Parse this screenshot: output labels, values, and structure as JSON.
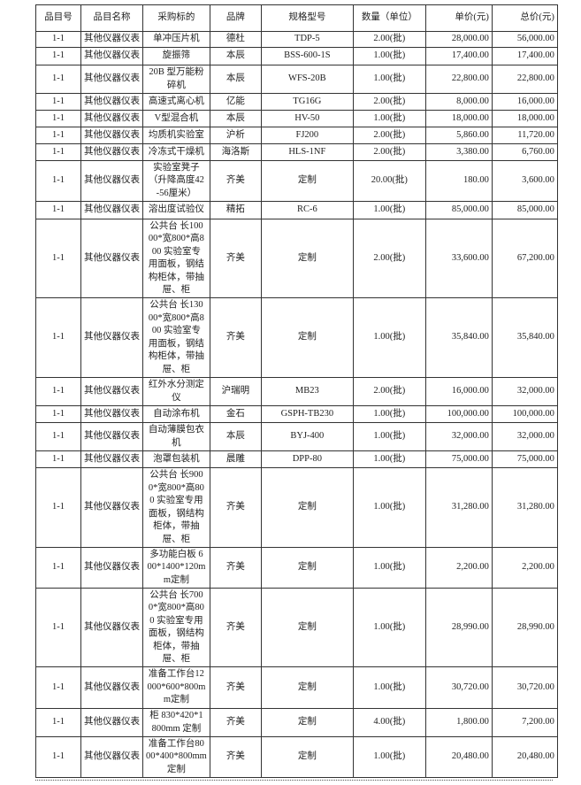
{
  "table": {
    "headers": [
      "品目号",
      "品目名称",
      "采购标的",
      "品牌",
      "规格型号",
      "数量（单位）",
      "单价(元)",
      "总价(元)"
    ],
    "rows": [
      [
        "1-1",
        "其他仪器仪表",
        "单冲压片机",
        "德杜",
        "TDP-5",
        "2.00(批)",
        "28,000.00",
        "56,000.00"
      ],
      [
        "1-1",
        "其他仪器仪表",
        "旋振筛",
        "本辰",
        "BSS-600-1S",
        "1.00(批)",
        "17,400.00",
        "17,400.00"
      ],
      [
        "1-1",
        "其他仪器仪表",
        "20B 型万能粉\n碎机",
        "本辰",
        "WFS-20B",
        "1.00(批)",
        "22,800.00",
        "22,800.00"
      ],
      [
        "1-1",
        "其他仪器仪表",
        "高速式离心机",
        "亿能",
        "TG16G",
        "2.00(批)",
        "8,000.00",
        "16,000.00"
      ],
      [
        "1-1",
        "其他仪器仪表",
        "V型混合机",
        "本辰",
        "HV-50",
        "1.00(批)",
        "18,000.00",
        "18,000.00"
      ],
      [
        "1-1",
        "其他仪器仪表",
        "均质机实验室",
        "沪析",
        "FJ200",
        "2.00(批)",
        "5,860.00",
        "11,720.00"
      ],
      [
        "1-1",
        "其他仪器仪表",
        "冷冻式干燥机",
        "海洛斯",
        "HLS-1NF",
        "2.00(批)",
        "3,380.00",
        "6,760.00"
      ],
      [
        "1-1",
        "其他仪器仪表",
        "实验室凳子\n（升降高度42\n-56厘米）",
        "齐美",
        "定制",
        "20.00(批)",
        "180.00",
        "3,600.00"
      ],
      [
        "1-1",
        "其他仪器仪表",
        "溶出度试验仪",
        "精拓",
        "RC-6",
        "1.00(批)",
        "85,000.00",
        "85,000.00"
      ],
      [
        "1-1",
        "其他仪器仪表",
        "公共台 长100\n00*宽800*高8\n00 实验室专\n用面板，钢结\n构柜体，带抽\n屉、柜",
        "齐美",
        "定制",
        "2.00(批)",
        "33,600.00",
        "67,200.00"
      ],
      [
        "1-1",
        "其他仪器仪表",
        "公共台 长130\n00*宽800*高8\n00 实验室专\n用面板，钢结\n构柜体，带抽\n屉、柜",
        "齐美",
        "定制",
        "1.00(批)",
        "35,840.00",
        "35,840.00"
      ],
      [
        "1-1",
        "其他仪器仪表",
        "红外水分测定\n仪",
        "沪瑞明",
        "MB23",
        "2.00(批)",
        "16,000.00",
        "32,000.00"
      ],
      [
        "1-1",
        "其他仪器仪表",
        "自动涂布机",
        "金石",
        "GSPH-TB230",
        "1.00(批)",
        "100,000.00",
        "100,000.00"
      ],
      [
        "1-1",
        "其他仪器仪表",
        "自动薄膜包衣\n机",
        "本辰",
        "BYJ-400",
        "1.00(批)",
        "32,000.00",
        "32,000.00"
      ],
      [
        "1-1",
        "其他仪器仪表",
        "泡罩包装机",
        "晨雕",
        "DPP-80",
        "1.00(批)",
        "75,000.00",
        "75,000.00"
      ],
      [
        "1-1",
        "其他仪器仪表",
        "公共台 长900\n0*宽800*高80\n0 实验室专用\n面板，钢结构\n柜体，带抽\n屉、柜",
        "齐美",
        "定制",
        "1.00(批)",
        "31,280.00",
        "31,280.00"
      ],
      [
        "1-1",
        "其他仪器仪表",
        "多功能白板 6\n00*1400*120m\nm定制",
        "齐美",
        "定制",
        "1.00(批)",
        "2,200.00",
        "2,200.00"
      ],
      [
        "1-1",
        "其他仪器仪表",
        "公共台 长700\n0*宽800*高80\n0 实验室专用\n面板，钢结构\n柜体，带抽\n屉、柜",
        "齐美",
        "定制",
        "1.00(批)",
        "28,990.00",
        "28,990.00"
      ],
      [
        "1-1",
        "其他仪器仪表",
        "准备工作台12\n000*600*800m\nm定制",
        "齐美",
        "定制",
        "1.00(批)",
        "30,720.00",
        "30,720.00"
      ],
      [
        "1-1",
        "其他仪器仪表",
        "柜 830*420*1\n800mm 定制",
        "齐美",
        "定制",
        "4.00(批)",
        "1,800.00",
        "7,200.00"
      ],
      [
        "1-1",
        "其他仪器仪表",
        "准备工作台80\n00*400*800mm\n定制",
        "齐美",
        "定制",
        "1.00(批)",
        "20,480.00",
        "20,480.00"
      ]
    ]
  }
}
